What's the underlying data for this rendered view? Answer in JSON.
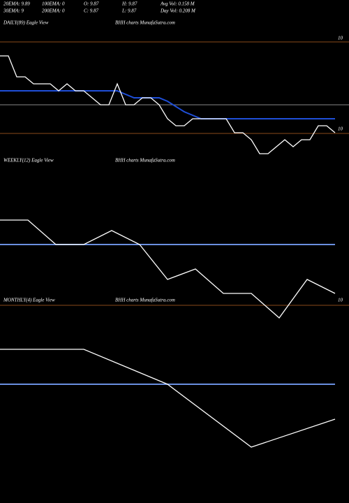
{
  "header": {
    "row1": [
      "20EMA: 9.89",
      "100EMA: 0",
      "O: 9.87",
      "H: 9.87",
      "Avg Vol: 0.158  M"
    ],
    "row2": [
      "30EMA: 9",
      "200EMA: 0",
      "C: 9.87",
      "L: 9.87",
      "Day Vol: 0.208  M"
    ]
  },
  "chart_data": [
    {
      "type": "line",
      "title": "DAILY(89) Eagle  View",
      "subtitle": "BHH charts MunafaSutra.com",
      "annotations": [
        "10",
        "10"
      ],
      "ylim": [
        9.74,
        10.1
      ],
      "series": [
        {
          "color": "#ffffff",
          "values": [
            10.04,
            10.04,
            9.98,
            9.98,
            9.96,
            9.96,
            9.96,
            9.94,
            9.96,
            9.94,
            9.94,
            9.92,
            9.9,
            9.9,
            9.96,
            9.9,
            9.9,
            9.92,
            9.92,
            9.9,
            9.86,
            9.84,
            9.84,
            9.86,
            9.86,
            9.86,
            9.86,
            9.86,
            9.82,
            9.82,
            9.8,
            9.76,
            9.76,
            9.78,
            9.8,
            9.78,
            9.8,
            9.8,
            9.84,
            9.84,
            9.82
          ]
        },
        {
          "color": "#1f4fd8",
          "values": [
            9.94,
            9.94,
            9.94,
            9.94,
            9.94,
            9.94,
            9.94,
            9.94,
            9.94,
            9.94,
            9.94,
            9.94,
            9.94,
            9.94,
            9.94,
            9.93,
            9.92,
            9.92,
            9.92,
            9.92,
            9.91,
            9.895,
            9.88,
            9.87,
            9.86,
            9.86,
            9.86,
            9.86,
            9.86,
            9.86,
            9.86,
            9.86,
            9.86,
            9.86,
            9.86,
            9.86,
            9.86,
            9.86,
            9.86,
            9.86,
            9.86
          ]
        }
      ]
    },
    {
      "type": "line",
      "title": "WEEKLY(12) Eagle  View",
      "subtitle": "BHH charts MunafaSutra.com",
      "ylim": [
        9.66,
        10.1
      ],
      "series": [
        {
          "color": "#ffffff",
          "values": [
            9.95,
            9.95,
            9.88,
            9.88,
            9.92,
            9.88,
            9.78,
            9.81,
            9.74,
            9.74,
            9.67,
            9.78,
            9.74
          ]
        },
        {
          "color": "#6a8fe0",
          "values": [
            9.88,
            9.88,
            9.88,
            9.88,
            9.88,
            9.88,
            9.88,
            9.88,
            9.88,
            9.88,
            9.88,
            9.88,
            9.88
          ]
        }
      ]
    },
    {
      "type": "line",
      "title": "MONTHLY(4) Eagle  View",
      "subtitle": "BHH charts MunafaSutra.com",
      "annotations": [
        "10"
      ],
      "ylim": [
        9.58,
        10.1
      ],
      "series": [
        {
          "color": "#ffffff",
          "values": [
            9.98,
            9.98,
            9.88,
            9.7,
            9.78
          ]
        },
        {
          "color": "#6a8fe0",
          "values": [
            9.88,
            9.88,
            9.88,
            9.88,
            9.88
          ]
        }
      ]
    }
  ]
}
